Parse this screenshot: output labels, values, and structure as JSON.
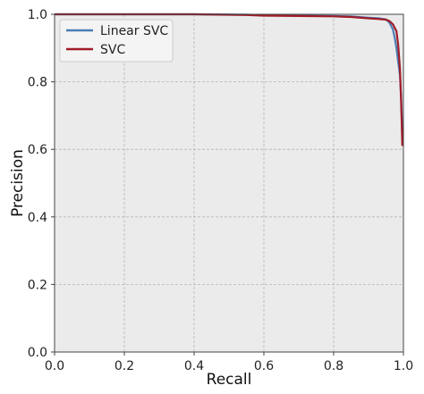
{
  "chart_data": {
    "type": "line",
    "title": "",
    "xlabel": "Recall",
    "ylabel": "Precision",
    "xlim": [
      0.0,
      1.0
    ],
    "ylim": [
      0.0,
      1.0
    ],
    "xticks": [
      "0.0",
      "0.2",
      "0.4",
      "0.6",
      "0.8",
      "1.0"
    ],
    "yticks": [
      "0.0",
      "0.2",
      "0.4",
      "0.6",
      "0.8",
      "1.0"
    ],
    "grid": true,
    "legend_position": "top-left",
    "series": [
      {
        "name": "Linear SVC",
        "color": "#4a7fb5",
        "x": [
          0.0,
          0.2,
          0.4,
          0.55,
          0.6,
          0.7,
          0.8,
          0.85,
          0.9,
          0.93,
          0.95,
          0.96,
          0.97,
          0.975,
          0.98,
          0.985,
          0.99,
          0.993,
          0.995,
          0.997
        ],
        "y": [
          1.0,
          1.0,
          1.0,
          0.999,
          0.997,
          0.996,
          0.995,
          0.994,
          0.99,
          0.988,
          0.985,
          0.975,
          0.955,
          0.93,
          0.9,
          0.86,
          0.82,
          0.76,
          0.7,
          0.62
        ]
      },
      {
        "name": "SVC",
        "color": "#a01c28",
        "x": [
          0.0,
          0.2,
          0.4,
          0.55,
          0.6,
          0.7,
          0.8,
          0.85,
          0.9,
          0.93,
          0.95,
          0.96,
          0.97,
          0.98,
          0.985,
          0.99,
          0.993,
          0.995,
          0.997
        ],
        "y": [
          1.0,
          1.0,
          1.0,
          0.998,
          0.996,
          0.995,
          0.994,
          0.992,
          0.988,
          0.986,
          0.984,
          0.98,
          0.97,
          0.95,
          0.91,
          0.84,
          0.75,
          0.68,
          0.61
        ]
      }
    ]
  }
}
